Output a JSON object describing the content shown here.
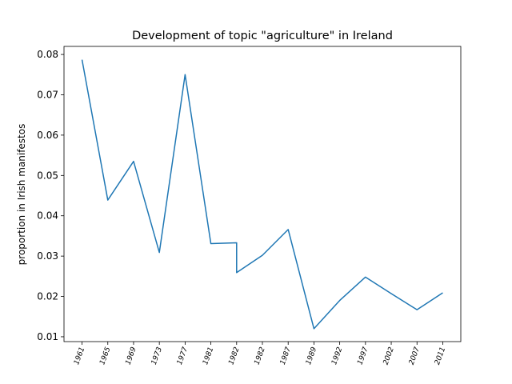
{
  "chart_data": {
    "type": "line",
    "title": "Development of topic \"agriculture\" in Ireland",
    "ylabel": "proportion in Irish manifestos",
    "series": [
      {
        "color": "#1f77b4",
        "x": [
          0,
          1,
          2,
          3,
          4,
          5,
          6,
          6,
          7,
          8,
          9,
          10,
          11,
          12,
          13,
          14
        ],
        "values": [
          0.0787,
          0.0439,
          0.0535,
          0.0309,
          0.075,
          0.0331,
          0.0333,
          0.0259,
          0.0302,
          0.0366,
          0.012,
          0.019,
          0.0248,
          0.0207,
          0.0167,
          0.0209
        ]
      }
    ],
    "xlim": [
      -0.7,
      14.7
    ],
    "xticks": [
      {
        "value": 0,
        "label": "1961"
      },
      {
        "value": 1,
        "label": "1965"
      },
      {
        "value": 2,
        "label": "1969"
      },
      {
        "value": 3,
        "label": "1973"
      },
      {
        "value": 4,
        "label": "1977"
      },
      {
        "value": 5,
        "label": "1981"
      },
      {
        "value": 6,
        "label": "1982"
      },
      {
        "value": 7,
        "label": "1982"
      },
      {
        "value": 8,
        "label": "1987"
      },
      {
        "value": 9,
        "label": "1989"
      },
      {
        "value": 10,
        "label": "1992"
      },
      {
        "value": 11,
        "label": "1997"
      },
      {
        "value": 12,
        "label": "2002"
      },
      {
        "value": 13,
        "label": "2007"
      },
      {
        "value": 14,
        "label": "2011"
      }
    ],
    "ylim": [
      0.0088,
      0.082
    ],
    "yticks": [
      0.01,
      0.02,
      0.03,
      0.04,
      0.05,
      0.06,
      0.07,
      0.08
    ]
  }
}
